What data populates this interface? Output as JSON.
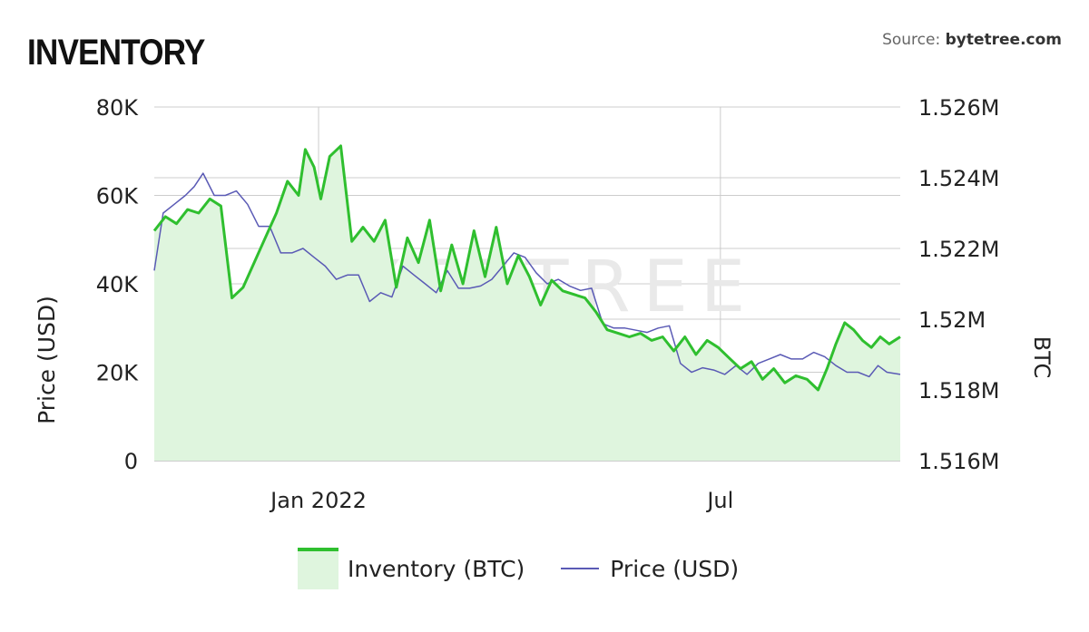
{
  "header": {
    "title": "INVENTORY",
    "source_prefix": "Source: ",
    "source_site": "bytetree.com"
  },
  "watermark": "BYTETREE",
  "colors": {
    "inventory_line": "#2fbf2f",
    "inventory_fill": "#dff5de",
    "price_line": "#5a5ab5",
    "grid": "#cccccc"
  },
  "chart_data": {
    "type": "line",
    "left_axis": {
      "label": "Price (USD)",
      "ticks": [
        "0",
        "20K",
        "40K",
        "60K",
        "80K"
      ],
      "range": [
        0,
        80000
      ]
    },
    "right_axis": {
      "label": "BTC",
      "ticks": [
        "1.516M",
        "1.518M",
        "1.52M",
        "1.522M",
        "1.524M",
        "1.526M"
      ],
      "range": [
        1516000,
        1526000
      ]
    },
    "x_axis": {
      "ticks": [
        "Jan 2022",
        "Jul"
      ],
      "range": [
        "2021-10-19",
        "2022-09-20"
      ],
      "tick_dates": [
        "2022-01-01",
        "2022-07-01"
      ]
    },
    "legend_position": "bottom",
    "grid": true,
    "series": [
      {
        "name": "Inventory (BTC)",
        "axis": "right",
        "area": true,
        "points": [
          [
            "2021-10-19",
            1522.5
          ],
          [
            "2021-10-24",
            1522.9
          ],
          [
            "2021-10-29",
            1522.7
          ],
          [
            "2021-11-03",
            1523.1
          ],
          [
            "2021-11-08",
            1523.0
          ],
          [
            "2021-11-13",
            1523.4
          ],
          [
            "2021-11-18",
            1523.2
          ],
          [
            "2021-11-23",
            1520.6
          ],
          [
            "2021-11-28",
            1520.9
          ],
          [
            "2021-12-03",
            1521.6
          ],
          [
            "2021-12-08",
            1522.3
          ],
          [
            "2021-12-13",
            1523.0
          ],
          [
            "2021-12-18",
            1523.9
          ],
          [
            "2021-12-23",
            1523.5
          ],
          [
            "2021-12-26",
            1524.8
          ],
          [
            "2021-12-30",
            1524.3
          ],
          [
            "2022-01-02",
            1523.4
          ],
          [
            "2022-01-06",
            1524.6
          ],
          [
            "2022-01-11",
            1524.9
          ],
          [
            "2022-01-16",
            1522.2
          ],
          [
            "2022-01-21",
            1522.6
          ],
          [
            "2022-01-26",
            1522.2
          ],
          [
            "2022-01-31",
            1522.8
          ],
          [
            "2022-02-05",
            1520.9
          ],
          [
            "2022-02-10",
            1522.3
          ],
          [
            "2022-02-15",
            1521.6
          ],
          [
            "2022-02-20",
            1522.8
          ],
          [
            "2022-02-25",
            1520.8
          ],
          [
            "2022-03-02",
            1522.1
          ],
          [
            "2022-03-07",
            1521.0
          ],
          [
            "2022-03-12",
            1522.5
          ],
          [
            "2022-03-17",
            1521.2
          ],
          [
            "2022-03-22",
            1522.6
          ],
          [
            "2022-03-27",
            1521.0
          ],
          [
            "2022-04-01",
            1521.8
          ],
          [
            "2022-04-06",
            1521.2
          ],
          [
            "2022-04-11",
            1520.4
          ],
          [
            "2022-04-16",
            1521.1
          ],
          [
            "2022-04-21",
            1520.8
          ],
          [
            "2022-04-26",
            1520.7
          ],
          [
            "2022-05-01",
            1520.6
          ],
          [
            "2022-05-06",
            1520.2
          ],
          [
            "2022-05-11",
            1519.7
          ],
          [
            "2022-05-16",
            1519.6
          ],
          [
            "2022-05-21",
            1519.5
          ],
          [
            "2022-05-26",
            1519.6
          ],
          [
            "2022-05-31",
            1519.4
          ],
          [
            "2022-06-05",
            1519.5
          ],
          [
            "2022-06-10",
            1519.1
          ],
          [
            "2022-06-15",
            1519.5
          ],
          [
            "2022-06-20",
            1519.0
          ],
          [
            "2022-06-25",
            1519.4
          ],
          [
            "2022-06-30",
            1519.2
          ],
          [
            "2022-07-05",
            1518.9
          ],
          [
            "2022-07-10",
            1518.6
          ],
          [
            "2022-07-15",
            1518.8
          ],
          [
            "2022-07-20",
            1518.3
          ],
          [
            "2022-07-25",
            1518.6
          ],
          [
            "2022-07-30",
            1518.2
          ],
          [
            "2022-08-04",
            1518.4
          ],
          [
            "2022-08-09",
            1518.3
          ],
          [
            "2022-08-14",
            1518.0
          ],
          [
            "2022-08-18",
            1518.6
          ],
          [
            "2022-08-22",
            1519.3
          ],
          [
            "2022-08-26",
            1519.9
          ],
          [
            "2022-08-30",
            1519.7
          ],
          [
            "2022-09-03",
            1519.4
          ],
          [
            "2022-09-07",
            1519.2
          ],
          [
            "2022-09-11",
            1519.5
          ],
          [
            "2022-09-15",
            1519.3
          ],
          [
            "2022-09-20",
            1519.5
          ]
        ]
      },
      {
        "name": "Price (USD)",
        "axis": "left",
        "area": false,
        "points": [
          [
            "2021-10-19",
            43000
          ],
          [
            "2021-10-23",
            56000
          ],
          [
            "2021-10-28",
            58000
          ],
          [
            "2021-11-02",
            60000
          ],
          [
            "2021-11-06",
            62000
          ],
          [
            "2021-11-10",
            65000
          ],
          [
            "2021-11-15",
            60000
          ],
          [
            "2021-11-20",
            60000
          ],
          [
            "2021-11-25",
            61000
          ],
          [
            "2021-11-30",
            58000
          ],
          [
            "2021-12-05",
            53000
          ],
          [
            "2021-12-10",
            53000
          ],
          [
            "2021-12-15",
            47000
          ],
          [
            "2021-12-20",
            47000
          ],
          [
            "2021-12-25",
            48000
          ],
          [
            "2021-12-30",
            46000
          ],
          [
            "2022-01-04",
            44000
          ],
          [
            "2022-01-09",
            41000
          ],
          [
            "2022-01-14",
            42000
          ],
          [
            "2022-01-19",
            42000
          ],
          [
            "2022-01-24",
            36000
          ],
          [
            "2022-01-29",
            38000
          ],
          [
            "2022-02-03",
            37000
          ],
          [
            "2022-02-08",
            44000
          ],
          [
            "2022-02-13",
            42000
          ],
          [
            "2022-02-18",
            40000
          ],
          [
            "2022-02-23",
            38000
          ],
          [
            "2022-02-28",
            43000
          ],
          [
            "2022-03-05",
            39000
          ],
          [
            "2022-03-10",
            39000
          ],
          [
            "2022-03-15",
            39500
          ],
          [
            "2022-03-20",
            41000
          ],
          [
            "2022-03-25",
            44000
          ],
          [
            "2022-03-30",
            47000
          ],
          [
            "2022-04-04",
            46000
          ],
          [
            "2022-04-09",
            42500
          ],
          [
            "2022-04-14",
            40000
          ],
          [
            "2022-04-19",
            41000
          ],
          [
            "2022-04-24",
            39500
          ],
          [
            "2022-04-29",
            38500
          ],
          [
            "2022-05-04",
            39000
          ],
          [
            "2022-05-09",
            31000
          ],
          [
            "2022-05-14",
            30000
          ],
          [
            "2022-05-19",
            30000
          ],
          [
            "2022-05-24",
            29500
          ],
          [
            "2022-05-29",
            29000
          ],
          [
            "2022-06-03",
            30000
          ],
          [
            "2022-06-08",
            30500
          ],
          [
            "2022-06-13",
            22000
          ],
          [
            "2022-06-18",
            20000
          ],
          [
            "2022-06-23",
            21000
          ],
          [
            "2022-06-28",
            20500
          ],
          [
            "2022-07-03",
            19500
          ],
          [
            "2022-07-08",
            21500
          ],
          [
            "2022-07-13",
            19500
          ],
          [
            "2022-07-18",
            22000
          ],
          [
            "2022-07-23",
            23000
          ],
          [
            "2022-07-28",
            24000
          ],
          [
            "2022-08-02",
            23000
          ],
          [
            "2022-08-07",
            23000
          ],
          [
            "2022-08-12",
            24500
          ],
          [
            "2022-08-17",
            23500
          ],
          [
            "2022-08-22",
            21500
          ],
          [
            "2022-08-27",
            20000
          ],
          [
            "2022-09-01",
            20000
          ],
          [
            "2022-09-06",
            19000
          ],
          [
            "2022-09-10",
            21500
          ],
          [
            "2022-09-14",
            20000
          ],
          [
            "2022-09-20",
            19500
          ]
        ]
      }
    ]
  }
}
